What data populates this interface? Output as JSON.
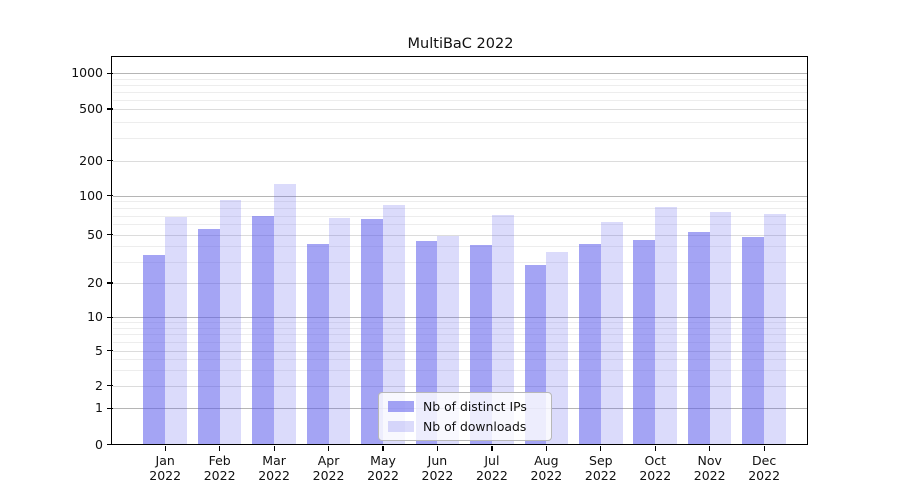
{
  "title": "MultiBaC 2022",
  "legend": {
    "items": [
      {
        "label": "Nb of distinct IPs",
        "color": "rgba(90,90,235,0.55)"
      },
      {
        "label": "Nb of downloads",
        "color": "rgba(90,90,235,0.22)"
      }
    ]
  },
  "axes": {
    "months": [
      "Jan",
      "Feb",
      "Mar",
      "Apr",
      "May",
      "Jun",
      "Jul",
      "Aug",
      "Sep",
      "Oct",
      "Nov",
      "Dec"
    ],
    "year": "2022",
    "yticks": [
      0,
      1,
      2,
      5,
      10,
      20,
      50,
      100,
      200,
      500,
      1000
    ]
  },
  "chart_data": {
    "type": "bar",
    "title": "MultiBaC 2022",
    "categories": [
      "Jan 2022",
      "Feb 2022",
      "Mar 2022",
      "Apr 2022",
      "May 2022",
      "Jun 2022",
      "Jul 2022",
      "Aug 2022",
      "Sep 2022",
      "Oct 2022",
      "Nov 2022",
      "Dec 2022"
    ],
    "series": [
      {
        "name": "Nb of distinct IPs",
        "color": "rgba(90,90,235,0.55)",
        "values": [
          34,
          55,
          70,
          42,
          66,
          44,
          41,
          28,
          42,
          45,
          52,
          48
        ]
      },
      {
        "name": "Nb of downloads",
        "color": "rgba(90,90,235,0.22)",
        "values": [
          68,
          93,
          126,
          67,
          85,
          49,
          71,
          36,
          62,
          82,
          74,
          72
        ]
      }
    ],
    "xlabel": "",
    "ylabel": "",
    "yscale": "log (symlog-like, 0 shown at axis bottom)",
    "ylim": [
      0,
      1300
    ],
    "yticks": [
      0,
      1,
      2,
      5,
      10,
      20,
      50,
      100,
      200,
      500,
      1000
    ],
    "grid": "both (major dark gray at 1,10,100,1000; lighter minors)",
    "legend_position": "lower center"
  },
  "grid_colors": {
    "major": "#b5b5b5",
    "labeled_minor": "#dcdcdc",
    "minor": "#ededed"
  }
}
